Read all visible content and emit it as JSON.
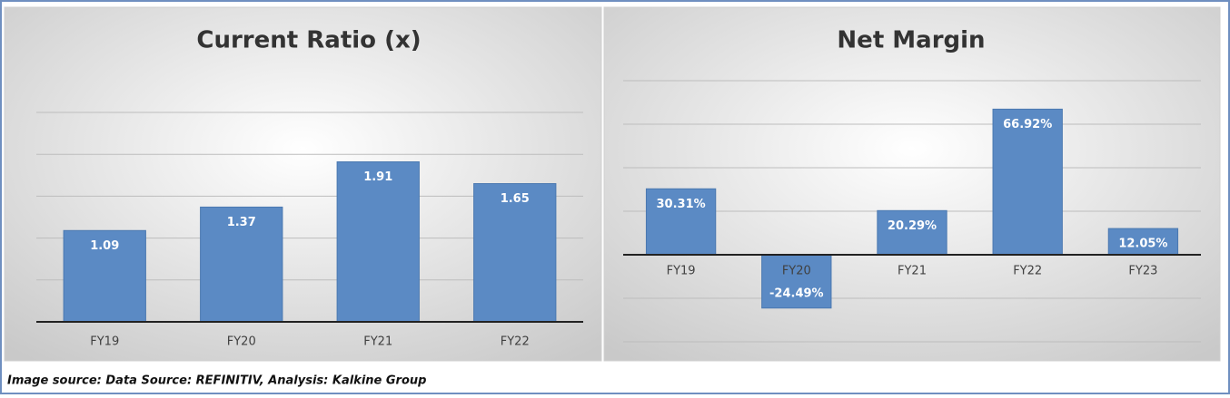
{
  "chart_data": [
    {
      "type": "bar",
      "title": "Current Ratio (x)",
      "categories": [
        "FY19",
        "FY20",
        "FY21",
        "FY22"
      ],
      "values": [
        1.09,
        1.37,
        1.91,
        1.65
      ],
      "color": "#5b8ac4",
      "ylim": [
        0,
        2.5
      ],
      "yticks": [
        0,
        0.5,
        1,
        1.5,
        2,
        2.5
      ],
      "grid": true
    },
    {
      "type": "bar",
      "title": "Net Margin",
      "categories": [
        "FY19",
        "FY20",
        "FY21",
        "FY22",
        "FY23"
      ],
      "values": [
        30.31,
        -24.49,
        20.29,
        66.92,
        12.05
      ],
      "value_labels": [
        "30.31%",
        "-24.49%",
        "20.29%",
        "66.92%",
        "12.05%"
      ],
      "color": "#5b8ac4",
      "ylim": [
        -40,
        80
      ],
      "yticks": [
        -40,
        -20,
        0,
        20,
        40,
        60,
        80
      ],
      "grid": true
    }
  ],
  "caption": "Image source: Data Source: REFINITIV, Analysis: Kalkine Group"
}
